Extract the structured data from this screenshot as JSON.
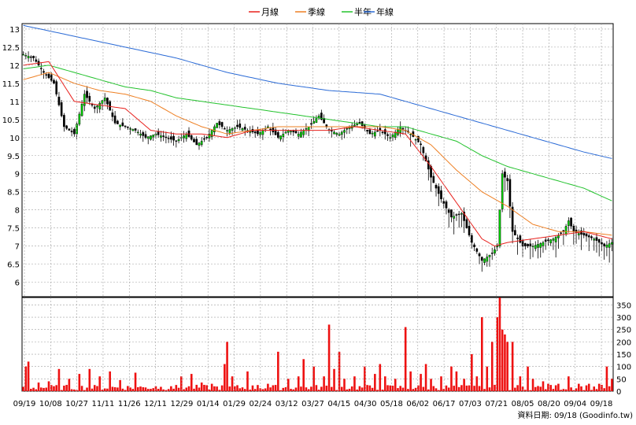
{
  "legend": [
    {
      "label": "月線",
      "color": "#e8201c"
    },
    {
      "label": "季線",
      "color": "#ee7f22"
    },
    {
      "label": "半年",
      "color": "#22c22c"
    },
    {
      "label": "年線",
      "color": "#2a6ad6"
    }
  ],
  "source_text": "資料日期: 09/18 (Goodinfo.tw)",
  "colors": {
    "up_candle": "#00cc00",
    "down_candle": "#000000",
    "volume": "#ee1111",
    "grid": "#a0a0a0"
  },
  "chart_data": {
    "type": "candlestick",
    "x_tick_labels": [
      "09/19",
      "10/08",
      "10/27",
      "11/11",
      "11/26",
      "12/11",
      "12/29",
      "01/14",
      "01/29",
      "02/24",
      "03/12",
      "03/27",
      "04/15",
      "04/30",
      "05/18",
      "06/02",
      "06/17",
      "07/03",
      "07/21",
      "08/05",
      "08/20",
      "09/04",
      "09/18"
    ],
    "price_axis": {
      "ticks": [
        6,
        6.5,
        7,
        7.5,
        8,
        8.5,
        9,
        9.5,
        10,
        10.5,
        11,
        11.5,
        12,
        12.5,
        13
      ],
      "ylim": [
        5.6,
        13.15
      ]
    },
    "volume_axis": {
      "ticks": [
        0,
        50,
        100,
        150,
        200,
        250,
        300,
        350
      ],
      "ylim": [
        0,
        380
      ]
    },
    "price_anchors": [
      [
        0,
        12.3
      ],
      [
        4,
        12.2
      ],
      [
        8,
        11.8
      ],
      [
        12,
        11.5
      ],
      [
        16,
        10.3
      ],
      [
        20,
        10.1
      ],
      [
        24,
        11.2
      ],
      [
        28,
        10.8
      ],
      [
        32,
        11.1
      ],
      [
        36,
        10.4
      ],
      [
        40,
        10.3
      ],
      [
        44,
        10.2
      ],
      [
        48,
        10.0
      ],
      [
        52,
        10.1
      ],
      [
        56,
        10.0
      ],
      [
        60,
        9.9
      ],
      [
        64,
        10.1
      ],
      [
        68,
        9.8
      ],
      [
        72,
        10.0
      ],
      [
        76,
        10.4
      ],
      [
        80,
        10.2
      ],
      [
        84,
        10.3
      ],
      [
        88,
        10.2
      ],
      [
        92,
        10.1
      ],
      [
        96,
        10.3
      ],
      [
        100,
        10.0
      ],
      [
        104,
        10.2
      ],
      [
        108,
        10.1
      ],
      [
        112,
        10.3
      ],
      [
        116,
        10.6
      ],
      [
        120,
        10.2
      ],
      [
        124,
        10.1
      ],
      [
        128,
        10.3
      ],
      [
        132,
        10.4
      ],
      [
        136,
        10.1
      ],
      [
        140,
        10.2
      ],
      [
        144,
        10.0
      ],
      [
        148,
        10.3
      ],
      [
        152,
        10.1
      ],
      [
        156,
        9.8
      ],
      [
        160,
        8.9
      ],
      [
        164,
        8.3
      ],
      [
        168,
        7.8
      ],
      [
        172,
        7.9
      ],
      [
        176,
        7.1
      ],
      [
        180,
        6.6
      ],
      [
        184,
        6.8
      ],
      [
        186,
        7.0
      ],
      [
        188,
        9.0
      ],
      [
        190,
        8.8
      ],
      [
        192,
        7.4
      ],
      [
        196,
        7.0
      ],
      [
        200,
        7.0
      ],
      [
        204,
        7.1
      ],
      [
        208,
        7.2
      ],
      [
        212,
        7.4
      ],
      [
        214,
        7.7
      ],
      [
        216,
        7.4
      ],
      [
        220,
        7.3
      ],
      [
        224,
        7.2
      ],
      [
        228,
        7.0
      ],
      [
        231,
        7.1
      ]
    ],
    "ma_month": [
      [
        0,
        12.0
      ],
      [
        10,
        12.1
      ],
      [
        20,
        11.0
      ],
      [
        30,
        10.9
      ],
      [
        40,
        10.8
      ],
      [
        50,
        10.2
      ],
      [
        60,
        10.1
      ],
      [
        70,
        10.1
      ],
      [
        80,
        10.0
      ],
      [
        90,
        10.2
      ],
      [
        100,
        10.2
      ],
      [
        110,
        10.2
      ],
      [
        120,
        10.2
      ],
      [
        130,
        10.3
      ],
      [
        140,
        10.2
      ],
      [
        150,
        10.1
      ],
      [
        160,
        9.2
      ],
      [
        170,
        8.2
      ],
      [
        180,
        7.2
      ],
      [
        185,
        7.0
      ],
      [
        190,
        7.1
      ],
      [
        200,
        7.2
      ],
      [
        210,
        7.3
      ],
      [
        220,
        7.4
      ],
      [
        231,
        7.2
      ]
    ],
    "ma_quarter": [
      [
        0,
        11.6
      ],
      [
        10,
        11.8
      ],
      [
        20,
        11.5
      ],
      [
        30,
        11.3
      ],
      [
        40,
        11.2
      ],
      [
        50,
        11.0
      ],
      [
        60,
        10.6
      ],
      [
        70,
        10.3
      ],
      [
        80,
        10.1
      ],
      [
        90,
        10.2
      ],
      [
        100,
        10.3
      ],
      [
        110,
        10.3
      ],
      [
        120,
        10.3
      ],
      [
        130,
        10.3
      ],
      [
        140,
        10.3
      ],
      [
        150,
        10.2
      ],
      [
        160,
        9.8
      ],
      [
        170,
        9.1
      ],
      [
        180,
        8.5
      ],
      [
        190,
        8.1
      ],
      [
        200,
        7.6
      ],
      [
        210,
        7.4
      ],
      [
        220,
        7.4
      ],
      [
        231,
        7.3
      ]
    ],
    "ma_halfyear": [
      [
        0,
        11.9
      ],
      [
        10,
        12.0
      ],
      [
        20,
        11.8
      ],
      [
        30,
        11.6
      ],
      [
        40,
        11.4
      ],
      [
        50,
        11.3
      ],
      [
        60,
        11.1
      ],
      [
        70,
        11.0
      ],
      [
        80,
        10.9
      ],
      [
        90,
        10.8
      ],
      [
        100,
        10.7
      ],
      [
        110,
        10.6
      ],
      [
        120,
        10.5
      ],
      [
        130,
        10.4
      ],
      [
        140,
        10.3
      ],
      [
        150,
        10.3
      ],
      [
        160,
        10.1
      ],
      [
        170,
        9.9
      ],
      [
        180,
        9.5
      ],
      [
        190,
        9.2
      ],
      [
        200,
        9.0
      ],
      [
        210,
        8.8
      ],
      [
        220,
        8.6
      ],
      [
        231,
        8.25
      ]
    ],
    "ma_year": [
      [
        0,
        13.1
      ],
      [
        20,
        12.8
      ],
      [
        40,
        12.5
      ],
      [
        60,
        12.2
      ],
      [
        80,
        11.8
      ],
      [
        100,
        11.5
      ],
      [
        120,
        11.3
      ],
      [
        140,
        11.2
      ],
      [
        150,
        11.0
      ],
      [
        160,
        10.8
      ],
      [
        170,
        10.6
      ],
      [
        180,
        10.4
      ],
      [
        190,
        10.2
      ],
      [
        200,
        10.0
      ],
      [
        210,
        9.8
      ],
      [
        220,
        9.6
      ],
      [
        231,
        9.42
      ]
    ],
    "volume_peaks": [
      [
        1,
        100
      ],
      [
        2,
        120
      ],
      [
        6,
        35
      ],
      [
        10,
        40
      ],
      [
        14,
        90
      ],
      [
        18,
        50
      ],
      [
        22,
        70
      ],
      [
        26,
        90
      ],
      [
        30,
        60
      ],
      [
        34,
        80
      ],
      [
        38,
        45
      ],
      [
        44,
        75
      ],
      [
        48,
        15
      ],
      [
        52,
        20
      ],
      [
        58,
        20
      ],
      [
        62,
        60
      ],
      [
        66,
        70
      ],
      [
        70,
        35
      ],
      [
        74,
        30
      ],
      [
        79,
        110
      ],
      [
        80,
        200
      ],
      [
        82,
        60
      ],
      [
        88,
        80
      ],
      [
        92,
        25
      ],
      [
        96,
        30
      ],
      [
        100,
        160
      ],
      [
        104,
        50
      ],
      [
        108,
        60
      ],
      [
        110,
        130
      ],
      [
        114,
        100
      ],
      [
        118,
        60
      ],
      [
        120,
        270
      ],
      [
        122,
        90
      ],
      [
        124,
        160
      ],
      [
        126,
        50
      ],
      [
        130,
        60
      ],
      [
        134,
        100
      ],
      [
        138,
        70
      ],
      [
        140,
        110
      ],
      [
        142,
        60
      ],
      [
        146,
        50
      ],
      [
        150,
        260
      ],
      [
        152,
        80
      ],
      [
        156,
        70
      ],
      [
        158,
        110
      ],
      [
        160,
        50
      ],
      [
        164,
        60
      ],
      [
        168,
        100
      ],
      [
        170,
        80
      ],
      [
        173,
        50
      ],
      [
        176,
        150
      ],
      [
        178,
        60
      ],
      [
        180,
        300
      ],
      [
        182,
        100
      ],
      [
        184,
        200
      ],
      [
        186,
        300
      ],
      [
        187,
        380
      ],
      [
        188,
        250
      ],
      [
        189,
        230
      ],
      [
        190,
        200
      ],
      [
        192,
        200
      ],
      [
        195,
        60
      ],
      [
        198,
        100
      ],
      [
        200,
        50
      ],
      [
        204,
        40
      ],
      [
        206,
        30
      ],
      [
        210,
        30
      ],
      [
        214,
        60
      ],
      [
        218,
        30
      ],
      [
        222,
        30
      ],
      [
        226,
        30
      ],
      [
        229,
        100
      ],
      [
        231,
        50
      ]
    ]
  }
}
